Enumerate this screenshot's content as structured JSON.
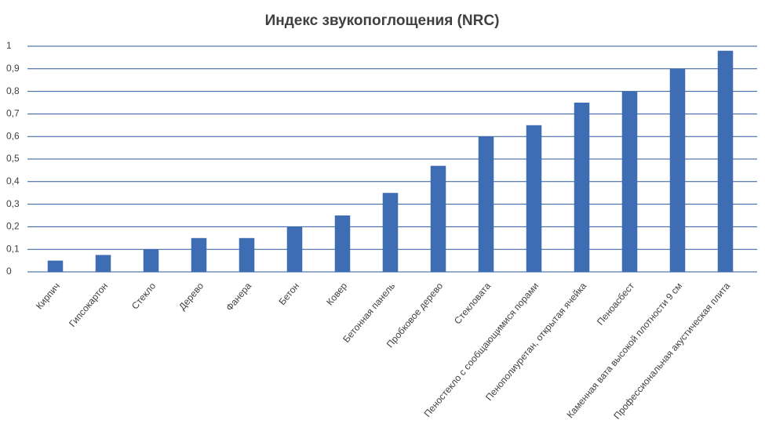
{
  "chart_data": {
    "type": "bar",
    "title": "Индекс звукопоглощения (NRC)",
    "categories": [
      "Кирпич",
      "Гипсокартон",
      "Стекло",
      "Дерево",
      "Фанера",
      "Бетон",
      "Ковер",
      "Бетонная панель",
      "Пробковое дерево",
      "Стекловата",
      "Пеностекло с сообщающимися порами",
      "Пенополиуретан, открытая ячейка",
      "Пеноасбест",
      "Каменная вата высокой плотности 9 см",
      "Профессиональная акустическая плита"
    ],
    "values": [
      0.05,
      0.075,
      0.1,
      0.15,
      0.15,
      0.2,
      0.25,
      0.35,
      0.47,
      0.6,
      0.65,
      0.75,
      0.8,
      0.9,
      0.98
    ],
    "color": "#3f6db3",
    "ylim": [
      0,
      1
    ],
    "yticks": [
      0,
      {
        "value": 0.1,
        "label": "0,1"
      },
      {
        "value": 0.2,
        "label": "0,2"
      },
      {
        "value": 0.3,
        "label": "0,3"
      },
      {
        "value": 0.4,
        "label": "0,4"
      },
      {
        "value": 0.5,
        "label": "0,5"
      },
      {
        "value": 0.6,
        "label": "0,6"
      },
      {
        "value": 0.7,
        "label": "0,7"
      },
      {
        "value": 0.8,
        "label": "0,8"
      },
      {
        "value": 0.9,
        "label": "0,9"
      },
      1
    ],
    "grid": true
  }
}
